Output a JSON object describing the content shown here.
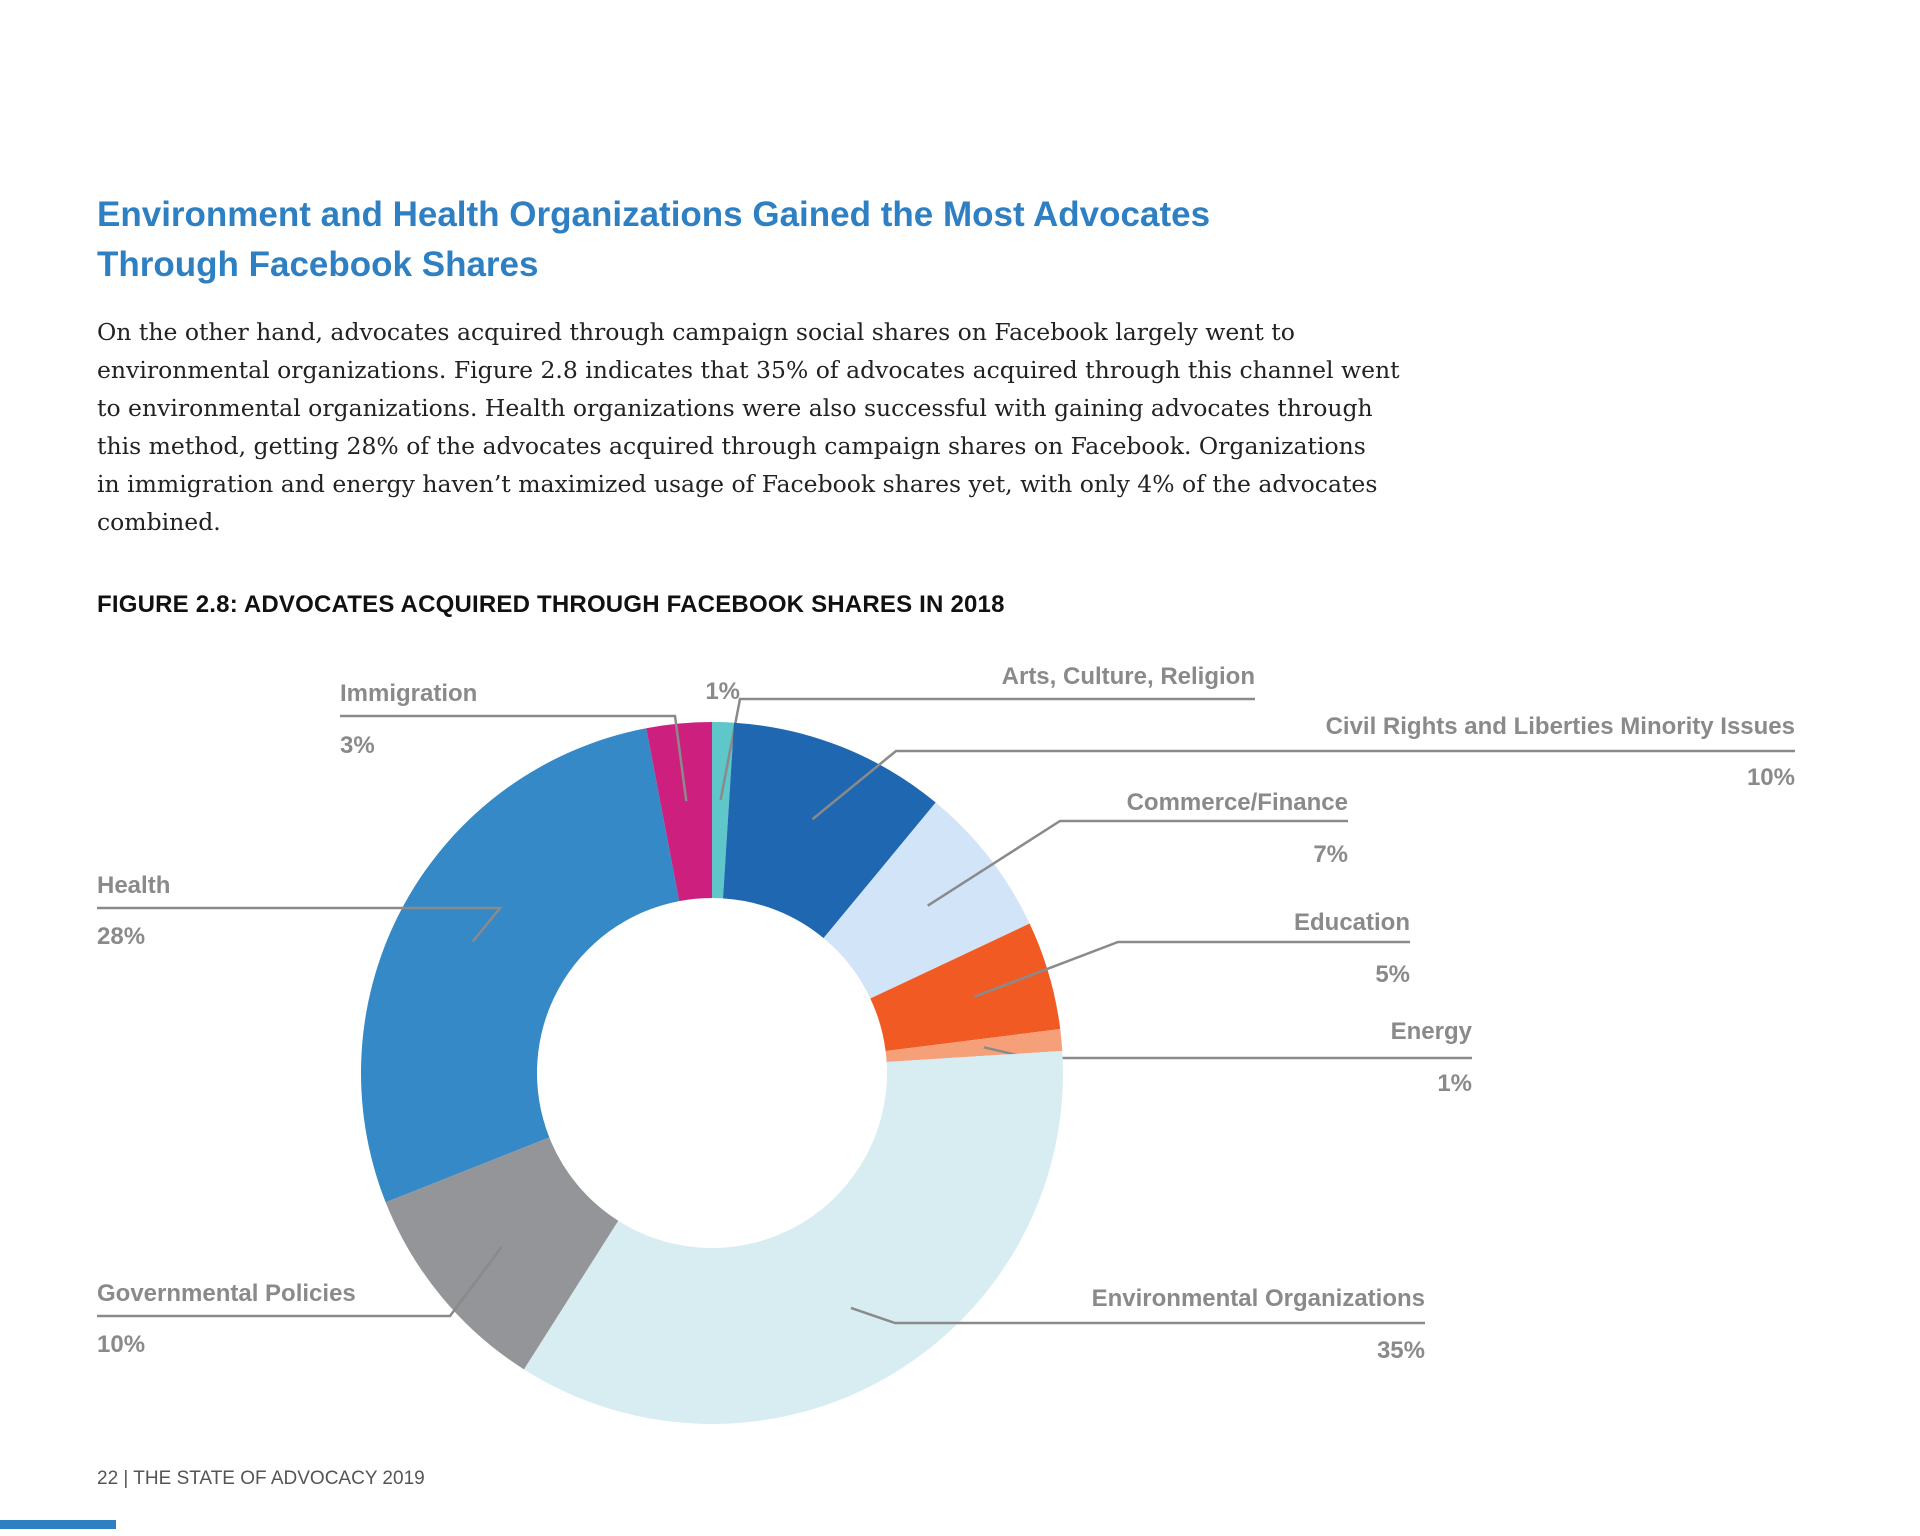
{
  "heading": {
    "line1": "Environment and Health Organizations Gained the Most Advocates",
    "line2": "Through Facebook Shares"
  },
  "body": {
    "lines": [
      "On the other hand, advocates acquired through campaign social shares on Facebook largely went to",
      "environmental organizations. Figure 2.8 indicates that 35% of advocates acquired through this channel went",
      "to environmental organizations. Health organizations were also successful with gaining advocates through",
      "this method, getting 28% of the advocates acquired through campaign shares on Facebook. Organizations",
      "in immigration and energy haven’t maximized usage of Facebook shares yet, with only 4% of the advocates",
      "combined."
    ]
  },
  "footer": {
    "text": "22 | THE STATE OF ADVOCACY 2019",
    "accent_color": "#2f80c2"
  },
  "chart_data": {
    "type": "pie",
    "style": "donut",
    "title": "FIGURE 2.8: ADVOCATES ACQUIRED THROUGH FACEBOOK SHARES IN 2018",
    "start": "12 o'clock",
    "direction": "clockwise",
    "slices": [
      {
        "label": "Arts, Culture, Religion",
        "value": 1,
        "value_label": "1%",
        "color": "#5fc6c9"
      },
      {
        "label": "Civil Rights and Liberties Minority Issues",
        "value": 10,
        "value_label": "10%",
        "color": "#1f68b1"
      },
      {
        "label": "Commerce/Finance",
        "value": 7,
        "value_label": "7%",
        "color": "#d2e4f7"
      },
      {
        "label": "Education",
        "value": 5,
        "value_label": "5%",
        "color": "#f15a22"
      },
      {
        "label": "Energy",
        "value": 1,
        "value_label": "1%",
        "color": "#f6a07a"
      },
      {
        "label": "Environmental Organizations",
        "value": 35,
        "value_label": "35%",
        "color": "#d7edf1"
      },
      {
        "label": "Governmental Policies",
        "value": 10,
        "value_label": "10%",
        "color": "#939598"
      },
      {
        "label": "Health",
        "value": 28,
        "value_label": "28%",
        "color": "#3589c6"
      },
      {
        "label": "Immigration",
        "value": 3,
        "value_label": "3%",
        "color": "#cc1f7e"
      }
    ]
  }
}
